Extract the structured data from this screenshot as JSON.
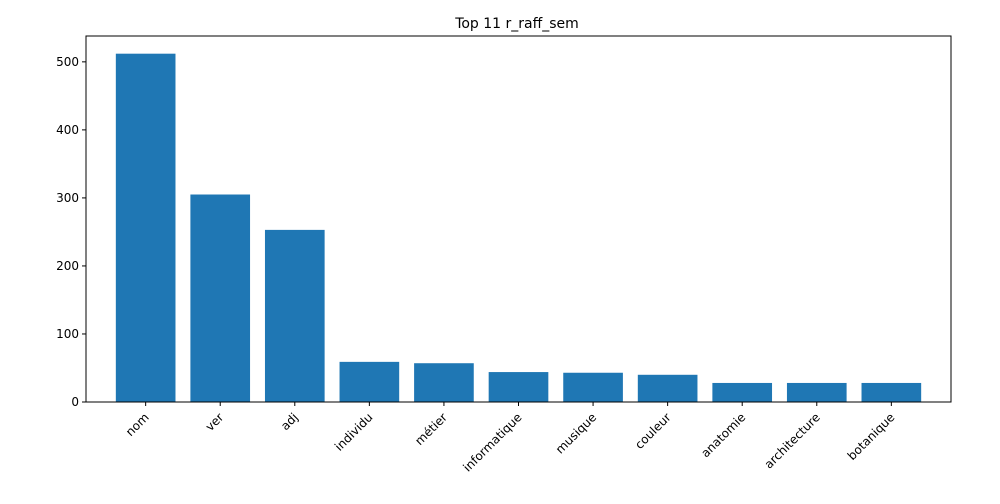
{
  "chart_data": {
    "type": "bar",
    "title": "Top 11 r_raff_sem",
    "xlabel": "",
    "ylabel": "",
    "categories": [
      "nom",
      "ver",
      "adj",
      "individu",
      "métier",
      "informatique",
      "musique",
      "couleur",
      "anatomie",
      "architecture",
      "botanique"
    ],
    "values": [
      512,
      305,
      253,
      59,
      57,
      44,
      43,
      40,
      28,
      28,
      28
    ],
    "ylim": [
      0,
      538
    ],
    "yticks": [
      0,
      100,
      200,
      300,
      400,
      500
    ],
    "ytick_labels": [
      "0",
      "100",
      "200",
      "300",
      "400",
      "500"
    ],
    "bar_color": "#1f77b4",
    "grid": false,
    "legend": "none"
  }
}
